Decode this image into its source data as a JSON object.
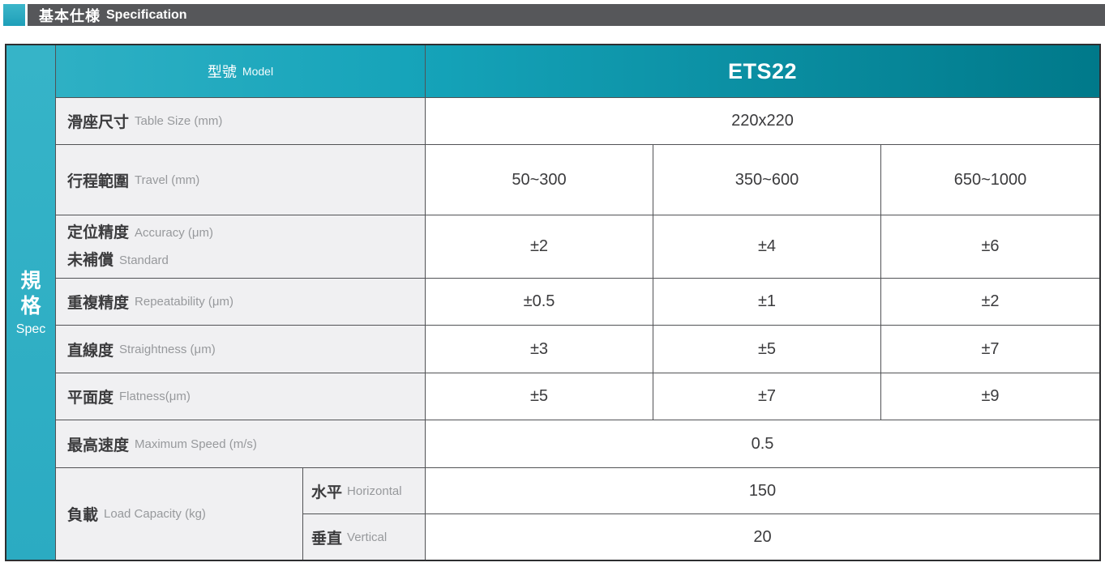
{
  "section_header": {
    "title_zh": "基本仕様",
    "title_en": "Specification"
  },
  "colors": {
    "accent_teal": "#2FB0C5",
    "header_teal_light": "#2EB0C4",
    "header_teal_dark": "#00798A",
    "title_bar_gray": "#56575A",
    "label_bg": "#F0F0F2",
    "grid_line": "#515255",
    "outer_border": "#2D2E30",
    "text_dark": "#3B3B3D",
    "text_gray": "#97999C"
  },
  "sidebar": {
    "zh_char1": "規",
    "zh_char2": "格",
    "en": "Spec"
  },
  "table": {
    "model_row": {
      "zh": "型號",
      "en": "Model",
      "value": "ETS22"
    },
    "rows": [
      {
        "zh": "滑座尺寸",
        "en": "Table Size (mm)",
        "merged": "220x220"
      },
      {
        "zh": "行程範圍",
        "en": "Travel (mm)",
        "values": [
          "50~300",
          "350~600",
          "650~1000"
        ]
      },
      {
        "zh": "定位精度",
        "en": "Accuracy (μm)",
        "zh2": "未補償",
        "en2": "Standard",
        "values": [
          "±2",
          "±4",
          "±6"
        ]
      },
      {
        "zh": "重複精度",
        "en": "Repeatability (μm)",
        "values": [
          "±0.5",
          "±1",
          "±2"
        ]
      },
      {
        "zh": "直線度",
        "en": "Straightness (μm)",
        "values": [
          "±3",
          "±5",
          "±7"
        ]
      },
      {
        "zh": "平面度",
        "en": "Flatness(μm)",
        "values": [
          "±5",
          "±7",
          "±9"
        ]
      },
      {
        "zh": "最高速度",
        "en": "Maximum Speed (m/s)",
        "merged": "0.5"
      }
    ],
    "load": {
      "zh": "負載",
      "en": "Load Capacity (kg)",
      "sub": [
        {
          "zh": "水平",
          "en": "Horizontal",
          "value": "150"
        },
        {
          "zh": "垂直",
          "en": "Vertical",
          "value": "20"
        }
      ]
    }
  }
}
